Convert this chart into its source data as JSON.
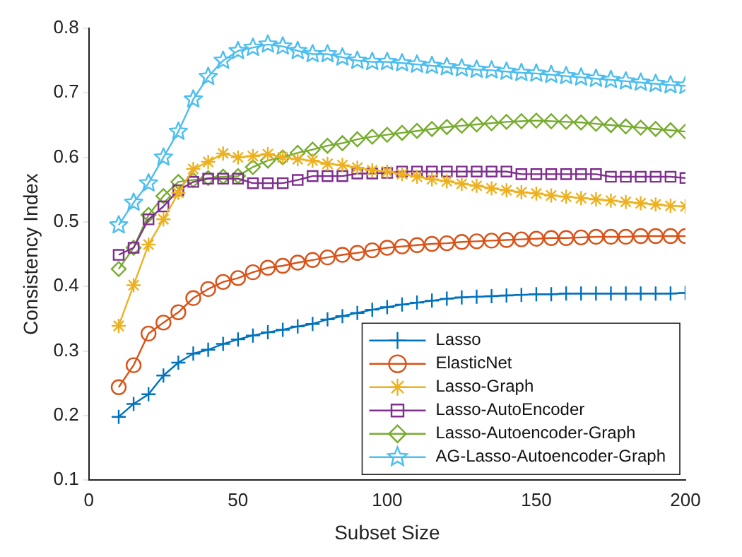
{
  "chart_data": {
    "type": "line",
    "xlabel": "Subset Size",
    "ylabel": "Consistency Index",
    "x": [
      10,
      15,
      20,
      25,
      30,
      35,
      40,
      45,
      50,
      55,
      60,
      65,
      70,
      75,
      80,
      85,
      90,
      95,
      100,
      105,
      110,
      115,
      120,
      125,
      130,
      135,
      140,
      145,
      150,
      155,
      160,
      165,
      170,
      175,
      180,
      185,
      190,
      195,
      200
    ],
    "xlim": [
      0,
      200
    ],
    "xticks": [
      0,
      50,
      100,
      150,
      200
    ],
    "ylim": [
      0.1,
      0.8
    ],
    "yticks": [
      0.1,
      0.2,
      0.3,
      0.4,
      0.5,
      0.6,
      0.7,
      0.8
    ],
    "grid": false,
    "legend": "bottom right",
    "line_style": "solid",
    "series": [
      {
        "name": "Lasso",
        "color": "#0072bd",
        "marker": "cross",
        "values": [
          0.198,
          0.218,
          0.233,
          0.262,
          0.282,
          0.296,
          0.302,
          0.311,
          0.318,
          0.324,
          0.329,
          0.333,
          0.338,
          0.342,
          0.349,
          0.354,
          0.359,
          0.364,
          0.368,
          0.372,
          0.375,
          0.378,
          0.381,
          0.383,
          0.384,
          0.385,
          0.386,
          0.387,
          0.388,
          0.388,
          0.389,
          0.389,
          0.389,
          0.389,
          0.389,
          0.389,
          0.389,
          0.389,
          0.39
        ]
      },
      {
        "name": "ElasticNet",
        "color": "#d95319",
        "marker": "circle",
        "values": [
          0.244,
          0.278,
          0.327,
          0.344,
          0.36,
          0.382,
          0.396,
          0.407,
          0.413,
          0.422,
          0.429,
          0.432,
          0.437,
          0.441,
          0.445,
          0.449,
          0.452,
          0.456,
          0.46,
          0.462,
          0.464,
          0.466,
          0.467,
          0.469,
          0.47,
          0.471,
          0.472,
          0.473,
          0.474,
          0.475,
          0.475,
          0.476,
          0.477,
          0.477,
          0.477,
          0.478,
          0.478,
          0.478,
          0.478
        ]
      },
      {
        "name": "Lasso-Graph",
        "color": "#edb120",
        "marker": "cross",
        "values": [
          0.339,
          0.402,
          0.465,
          0.504,
          0.545,
          0.582,
          0.593,
          0.606,
          0.6,
          0.602,
          0.605,
          0.6,
          0.597,
          0.595,
          0.59,
          0.588,
          0.584,
          0.58,
          0.578,
          0.574,
          0.57,
          0.566,
          0.563,
          0.559,
          0.556,
          0.552,
          0.549,
          0.546,
          0.544,
          0.541,
          0.539,
          0.537,
          0.535,
          0.533,
          0.531,
          0.529,
          0.527,
          0.525,
          0.524
        ]
      },
      {
        "name": "Lasso-AutoEncoder",
        "color": "#7e2f8e",
        "marker": "square",
        "values": [
          0.449,
          0.46,
          0.504,
          0.524,
          0.549,
          0.562,
          0.567,
          0.567,
          0.567,
          0.56,
          0.56,
          0.56,
          0.565,
          0.571,
          0.571,
          0.571,
          0.575,
          0.575,
          0.576,
          0.578,
          0.578,
          0.578,
          0.578,
          0.578,
          0.578,
          0.578,
          0.578,
          0.574,
          0.574,
          0.574,
          0.574,
          0.574,
          0.574,
          0.57,
          0.57,
          0.57,
          0.57,
          0.57,
          0.568
        ]
      },
      {
        "name": "Lasso-Autoencoder-Graph",
        "color": "#77ac30",
        "marker": "diamond",
        "values": [
          0.427,
          0.46,
          0.511,
          0.54,
          0.562,
          0.565,
          0.568,
          0.57,
          0.571,
          0.585,
          0.595,
          0.6,
          0.607,
          0.612,
          0.618,
          0.622,
          0.628,
          0.632,
          0.635,
          0.638,
          0.641,
          0.644,
          0.647,
          0.649,
          0.651,
          0.653,
          0.655,
          0.656,
          0.657,
          0.656,
          0.655,
          0.654,
          0.652,
          0.65,
          0.648,
          0.646,
          0.644,
          0.642,
          0.64
        ]
      },
      {
        "name": "AG-Lasso-Autoencoder-Graph",
        "color": "#4dbeee",
        "marker": "star",
        "values": [
          0.495,
          0.53,
          0.56,
          0.6,
          0.64,
          0.69,
          0.725,
          0.75,
          0.765,
          0.77,
          0.775,
          0.772,
          0.765,
          0.76,
          0.76,
          0.755,
          0.75,
          0.748,
          0.748,
          0.746,
          0.744,
          0.742,
          0.74,
          0.738,
          0.736,
          0.735,
          0.733,
          0.731,
          0.73,
          0.728,
          0.726,
          0.724,
          0.722,
          0.72,
          0.718,
          0.716,
          0.714,
          0.712,
          0.711
        ]
      }
    ]
  }
}
